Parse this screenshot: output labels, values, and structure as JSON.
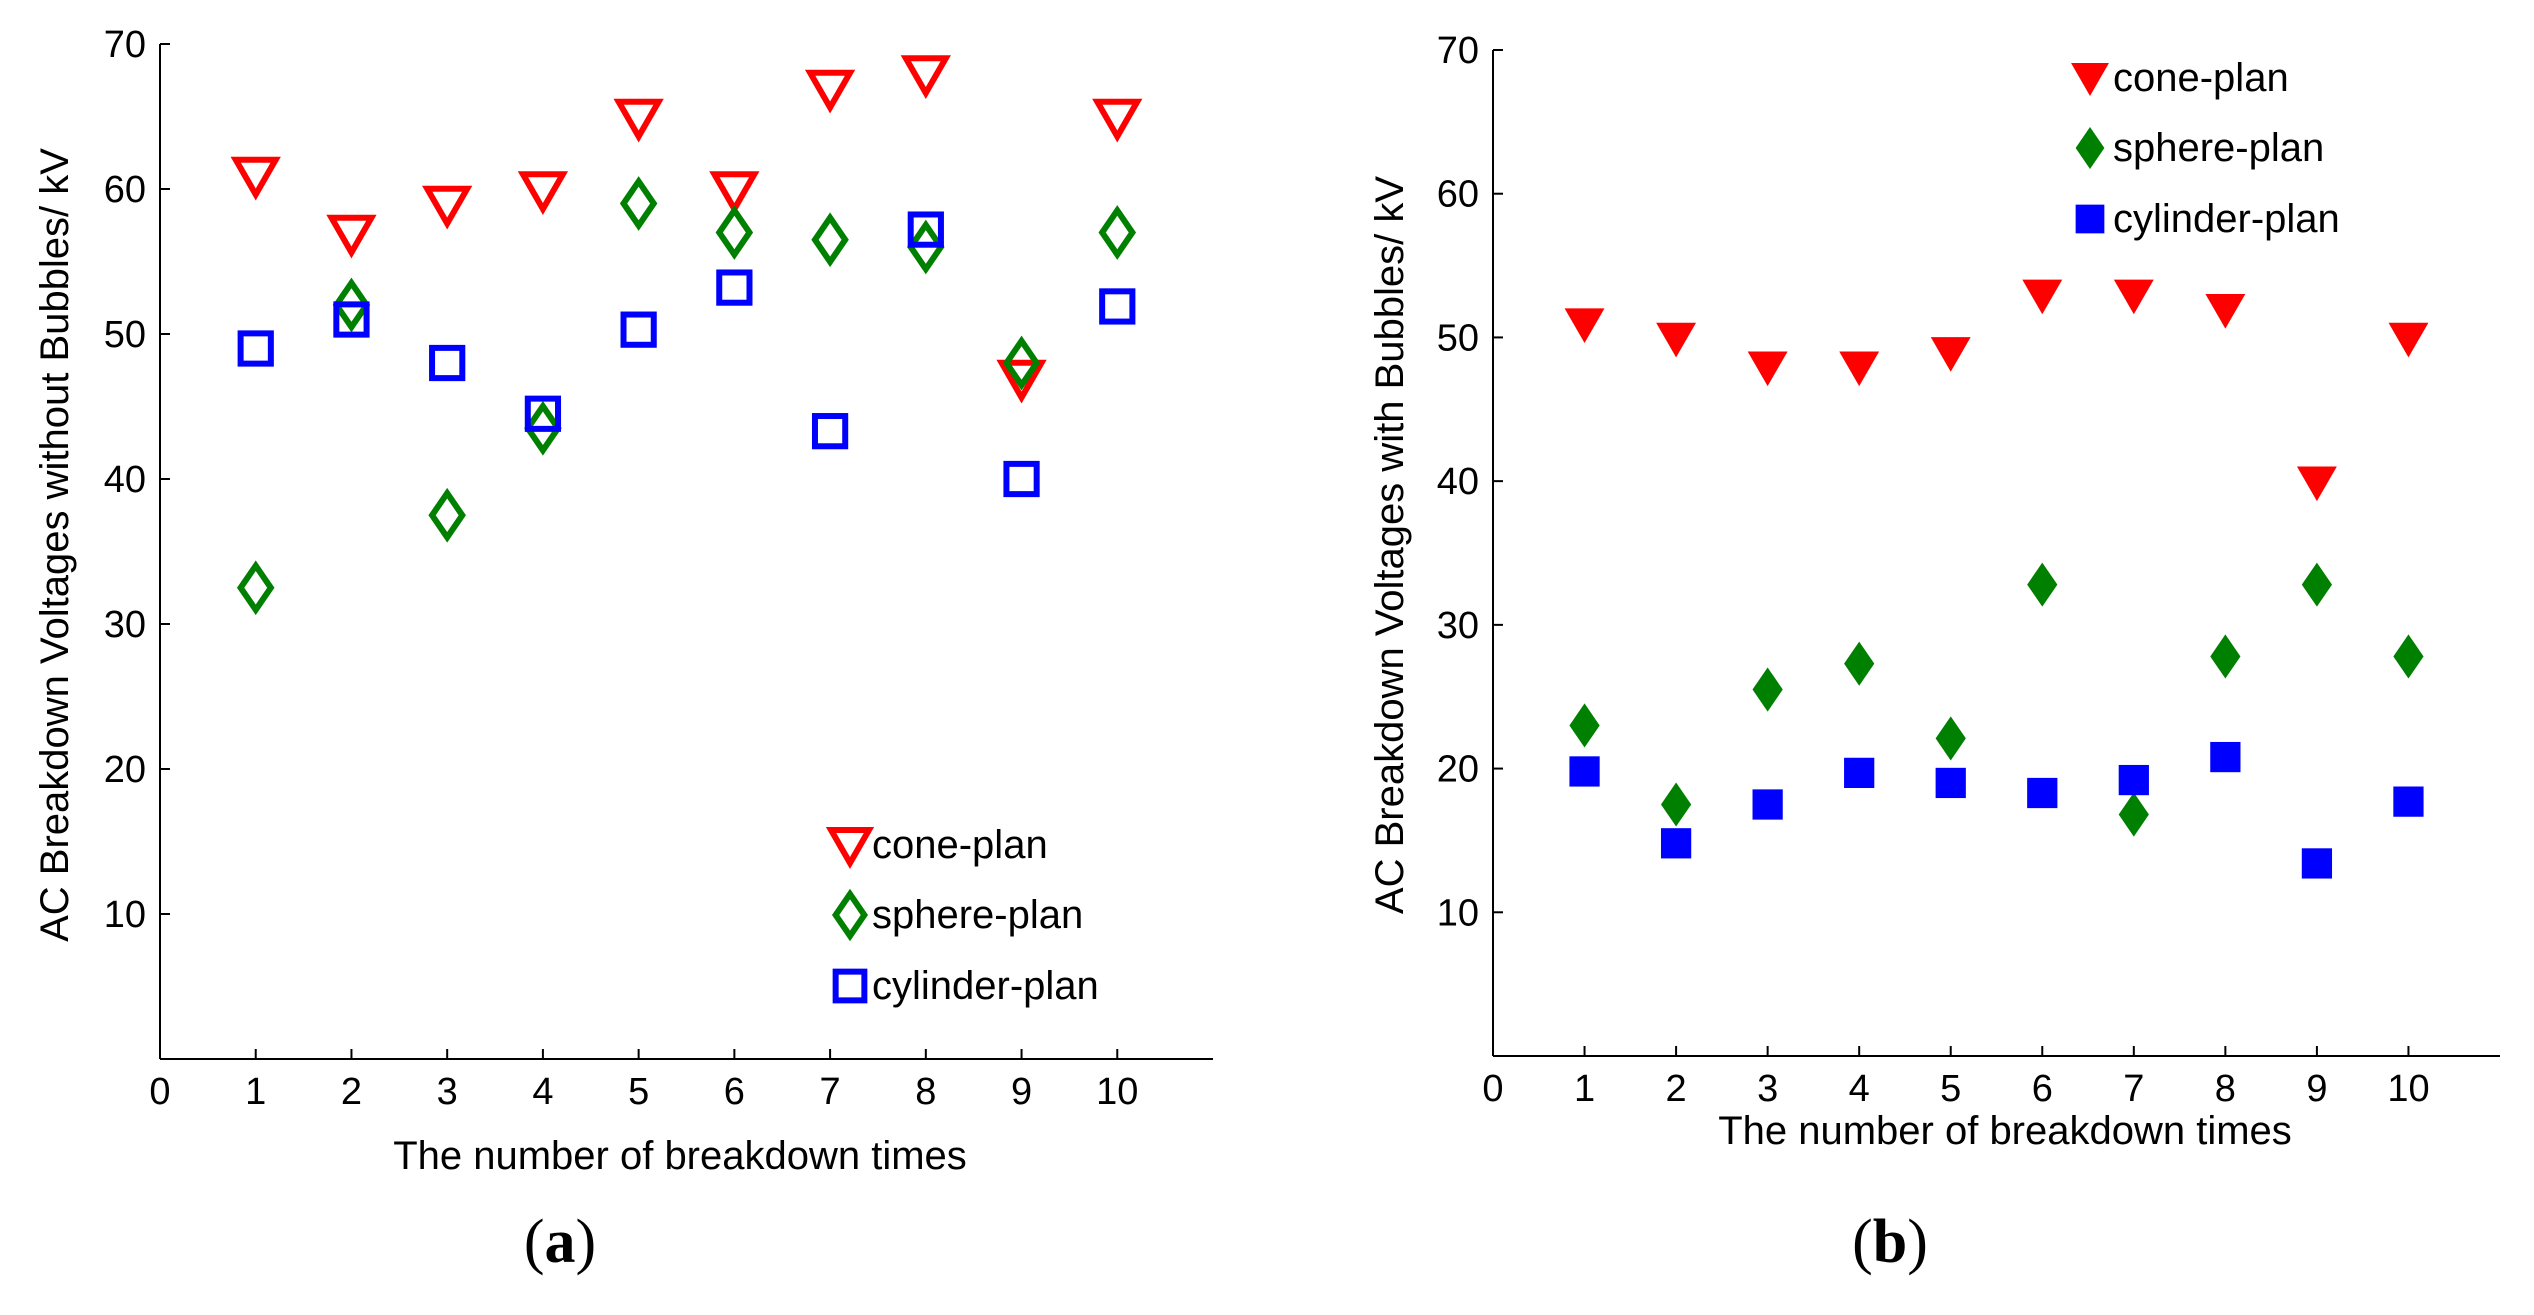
{
  "chart_data": [
    {
      "type": "scatter",
      "panel_label": "(a)",
      "panel_letter": "a",
      "xlabel": "The number of breakdown times",
      "ylabel": "AC Breakdown Voltages without Bubbles/ kV",
      "xlim": [
        0,
        11
      ],
      "ylim": [
        0,
        70
      ],
      "xticks": [
        0,
        1,
        2,
        3,
        4,
        5,
        6,
        7,
        8,
        9,
        10
      ],
      "yticks": [
        10,
        20,
        30,
        40,
        50,
        60,
        70
      ],
      "x": [
        1,
        2,
        3,
        4,
        5,
        6,
        7,
        8,
        9,
        10
      ],
      "marker_fill": "open",
      "legend_position": "bottom-right",
      "series": [
        {
          "name": "cone-plan",
          "marker": "triangle-down",
          "color": "#ff0000",
          "values": [
            61,
            57,
            59,
            60,
            65,
            60,
            67,
            68,
            47,
            65
          ]
        },
        {
          "name": "sphere-plan",
          "marker": "diamond",
          "color": "#008000",
          "values": [
            32.5,
            52,
            37.5,
            43.5,
            59,
            57,
            56.5,
            56,
            48,
            57
          ]
        },
        {
          "name": "cylinder-plan",
          "marker": "square",
          "color": "#0000ff",
          "values": [
            49,
            51,
            48,
            44.5,
            50.3,
            53.2,
            43.3,
            57.2,
            40,
            51.9
          ]
        }
      ]
    },
    {
      "type": "scatter",
      "panel_label": "(b)",
      "panel_letter": "b",
      "xlabel": "The number of breakdown times",
      "ylabel": "AC Breakdown Voltages with Bubbles/ kV",
      "xlim": [
        0,
        11
      ],
      "ylim": [
        0,
        70
      ],
      "xticks": [
        0,
        1,
        2,
        3,
        4,
        5,
        6,
        7,
        8,
        9,
        10
      ],
      "yticks": [
        10,
        20,
        30,
        40,
        50,
        60,
        70
      ],
      "x": [
        1,
        2,
        3,
        4,
        5,
        6,
        7,
        8,
        9,
        10
      ],
      "marker_fill": "filled",
      "legend_position": "top-right",
      "series": [
        {
          "name": "cone-plan",
          "marker": "triangle-down",
          "color": "#ff0000",
          "values": [
            51,
            50,
            48,
            48,
            49,
            53,
            53,
            52,
            40,
            50
          ]
        },
        {
          "name": "sphere-plan",
          "marker": "diamond",
          "color": "#008000",
          "values": [
            23,
            17.5,
            25.5,
            27.3,
            22.1,
            32.8,
            16.8,
            27.8,
            32.8,
            27.8
          ]
        },
        {
          "name": "cylinder-plan",
          "marker": "square",
          "color": "#0000ff",
          "values": [
            19.8,
            14.8,
            17.5,
            19.7,
            19,
            18.3,
            19.2,
            20.8,
            13.4,
            17.7
          ]
        }
      ]
    }
  ]
}
